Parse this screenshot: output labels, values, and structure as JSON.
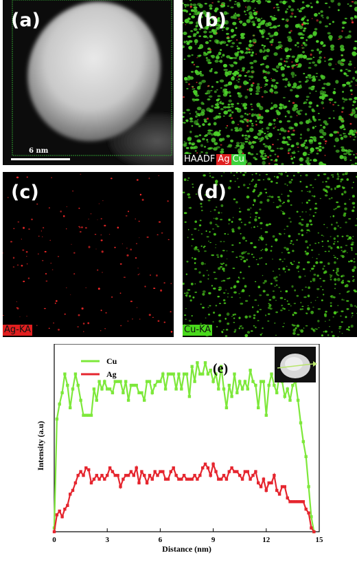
{
  "panels": {
    "a": {
      "label": "(a)",
      "scale_bar": "6 nm"
    },
    "b": {
      "label": "(b)",
      "legend": [
        {
          "text": "HAADF",
          "bg": "#000000",
          "fg": "#ffffff"
        },
        {
          "text": "Ag",
          "bg": "#e01f1f",
          "fg": "#ffffff"
        },
        {
          "text": "Cu",
          "bg": "#3cd23c",
          "fg": "#ffffff"
        }
      ]
    },
    "c": {
      "label": "(c)",
      "tag": "Ag-KA",
      "color": "#ff2a2a"
    },
    "d": {
      "label": "(d)",
      "tag": "Cu-KA",
      "color": "#49d81c"
    }
  },
  "chart_data": {
    "type": "line",
    "panel_label": "(e)",
    "xlabel": "Distance (nm)",
    "ylabel": "Intensity (a.u)",
    "xlim": [
      0,
      15
    ],
    "x_ticks": [
      0,
      3,
      6,
      9,
      12,
      15
    ],
    "ylim": [
      0,
      100
    ],
    "legend_position": "top-left",
    "series": [
      {
        "name": "Cu",
        "color": "#7de83a",
        "x": [
          0.0,
          0.15,
          0.3,
          0.45,
          0.6,
          0.75,
          0.9,
          1.05,
          1.2,
          1.35,
          1.5,
          1.65,
          1.8,
          1.95,
          2.1,
          2.25,
          2.4,
          2.55,
          2.7,
          2.85,
          3.0,
          3.15,
          3.3,
          3.45,
          3.6,
          3.75,
          3.9,
          4.05,
          4.2,
          4.35,
          4.5,
          4.65,
          4.8,
          4.95,
          5.1,
          5.25,
          5.4,
          5.55,
          5.7,
          5.85,
          6.0,
          6.15,
          6.3,
          6.45,
          6.6,
          6.75,
          6.9,
          7.05,
          7.2,
          7.35,
          7.5,
          7.65,
          7.8,
          7.95,
          8.1,
          8.25,
          8.4,
          8.55,
          8.7,
          8.85,
          9.0,
          9.15,
          9.3,
          9.45,
          9.6,
          9.75,
          9.9,
          10.05,
          10.2,
          10.35,
          10.5,
          10.65,
          10.8,
          10.95,
          11.1,
          11.25,
          11.4,
          11.55,
          11.7,
          11.85,
          12.0,
          12.15,
          12.3,
          12.45,
          12.6,
          12.75,
          12.9,
          13.05,
          13.2,
          13.35,
          13.5,
          13.65,
          13.8,
          13.95,
          14.1,
          14.25,
          14.4,
          14.55,
          14.7
        ],
        "values": [
          2,
          60,
          68,
          74,
          84,
          78,
          66,
          76,
          84,
          78,
          70,
          62,
          62,
          62,
          62,
          76,
          70,
          80,
          76,
          80,
          76,
          76,
          74,
          80,
          80,
          80,
          74,
          80,
          70,
          78,
          78,
          78,
          74,
          74,
          70,
          80,
          80,
          74,
          78,
          80,
          80,
          84,
          76,
          84,
          84,
          84,
          76,
          84,
          76,
          84,
          84,
          72,
          88,
          80,
          90,
          84,
          84,
          90,
          84,
          86,
          80,
          84,
          76,
          88,
          76,
          66,
          78,
          72,
          84,
          74,
          80,
          76,
          80,
          76,
          86,
          80,
          78,
          66,
          80,
          80,
          62,
          78,
          84,
          78,
          74,
          84,
          80,
          72,
          76,
          70,
          78,
          80,
          70,
          58,
          48,
          40,
          24,
          8,
          0
        ]
      },
      {
        "name": "Ag",
        "color": "#e5252e",
        "x": [
          0.0,
          0.15,
          0.3,
          0.45,
          0.6,
          0.75,
          0.9,
          1.05,
          1.2,
          1.35,
          1.5,
          1.65,
          1.8,
          1.95,
          2.1,
          2.25,
          2.4,
          2.55,
          2.7,
          2.85,
          3.0,
          3.15,
          3.3,
          3.45,
          3.6,
          3.75,
          3.9,
          4.05,
          4.2,
          4.35,
          4.5,
          4.65,
          4.8,
          4.95,
          5.1,
          5.25,
          5.4,
          5.55,
          5.7,
          5.85,
          6.0,
          6.15,
          6.3,
          6.45,
          6.6,
          6.75,
          6.9,
          7.05,
          7.2,
          7.35,
          7.5,
          7.65,
          7.8,
          7.95,
          8.1,
          8.25,
          8.4,
          8.55,
          8.7,
          8.85,
          9.0,
          9.15,
          9.3,
          9.45,
          9.6,
          9.75,
          9.9,
          10.05,
          10.2,
          10.35,
          10.5,
          10.65,
          10.8,
          10.95,
          11.1,
          11.25,
          11.4,
          11.55,
          11.7,
          11.85,
          12.0,
          12.15,
          12.3,
          12.45,
          12.6,
          12.75,
          12.9,
          13.05,
          13.2,
          13.35,
          13.5,
          13.65,
          13.8,
          13.95,
          14.1,
          14.25,
          14.4,
          14.55,
          14.7
        ],
        "values": [
          0,
          9,
          11,
          8,
          12,
          14,
          20,
          22,
          26,
          30,
          32,
          30,
          34,
          33,
          26,
          28,
          30,
          28,
          30,
          28,
          30,
          34,
          32,
          30,
          30,
          24,
          28,
          30,
          30,
          32,
          30,
          34,
          26,
          32,
          30,
          26,
          30,
          28,
          32,
          30,
          32,
          32,
          28,
          28,
          32,
          34,
          30,
          28,
          28,
          30,
          28,
          28,
          28,
          30,
          28,
          30,
          34,
          36,
          34,
          30,
          36,
          32,
          28,
          28,
          30,
          28,
          32,
          34,
          32,
          32,
          30,
          28,
          32,
          32,
          28,
          30,
          32,
          26,
          24,
          28,
          22,
          26,
          26,
          30,
          22,
          20,
          24,
          24,
          18,
          16,
          16,
          16,
          16,
          16,
          16,
          12,
          10,
          2,
          0
        ]
      }
    ]
  }
}
